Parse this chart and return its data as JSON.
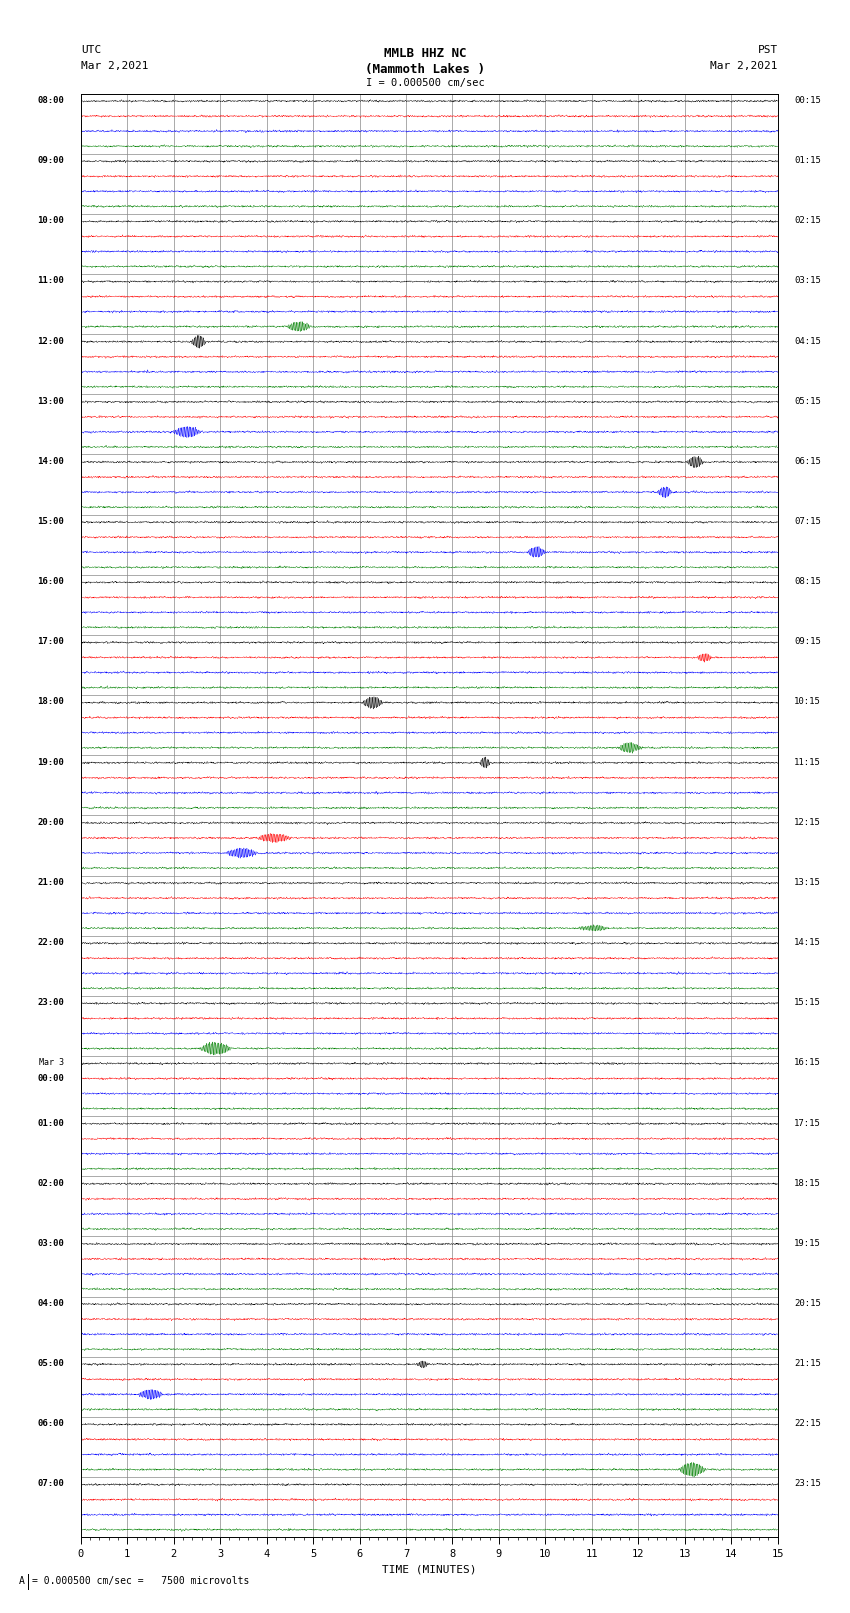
{
  "title_line1": "MMLB HHZ NC",
  "title_line2": "(Mammoth Lakes )",
  "title_line3": "I = 0.000500 cm/sec",
  "utc_label": "UTC",
  "utc_date": "Mar 2,2021",
  "pst_label": "PST",
  "pst_date": "Mar 2,2021",
  "xlabel": "TIME (MINUTES)",
  "footnote": "= 0.000500 cm/sec =   7500 microvolts",
  "num_rows": 24,
  "traces_per_row": 4,
  "trace_colors": [
    "black",
    "red",
    "blue",
    "green"
  ],
  "bg_color": "white",
  "grid_color": "#888888",
  "xlim": [
    0,
    15
  ],
  "xticks": [
    0,
    1,
    2,
    3,
    4,
    5,
    6,
    7,
    8,
    9,
    10,
    11,
    12,
    13,
    14,
    15
  ],
  "fig_width": 8.5,
  "fig_height": 16.13,
  "dpi": 100,
  "left_time_labels_utc": [
    "08:00",
    "09:00",
    "10:00",
    "11:00",
    "12:00",
    "13:00",
    "14:00",
    "15:00",
    "16:00",
    "17:00",
    "18:00",
    "19:00",
    "20:00",
    "21:00",
    "22:00",
    "23:00",
    "Mar 3\n00:00",
    "01:00",
    "02:00",
    "03:00",
    "04:00",
    "05:00",
    "06:00",
    "07:00"
  ],
  "right_time_labels_pst": [
    "00:15",
    "01:15",
    "02:15",
    "03:15",
    "04:15",
    "05:15",
    "06:15",
    "07:15",
    "08:15",
    "09:15",
    "10:15",
    "11:15",
    "12:15",
    "13:15",
    "14:15",
    "15:15",
    "16:15",
    "17:15",
    "18:15",
    "19:15",
    "20:15",
    "21:15",
    "22:15",
    "23:15"
  ]
}
